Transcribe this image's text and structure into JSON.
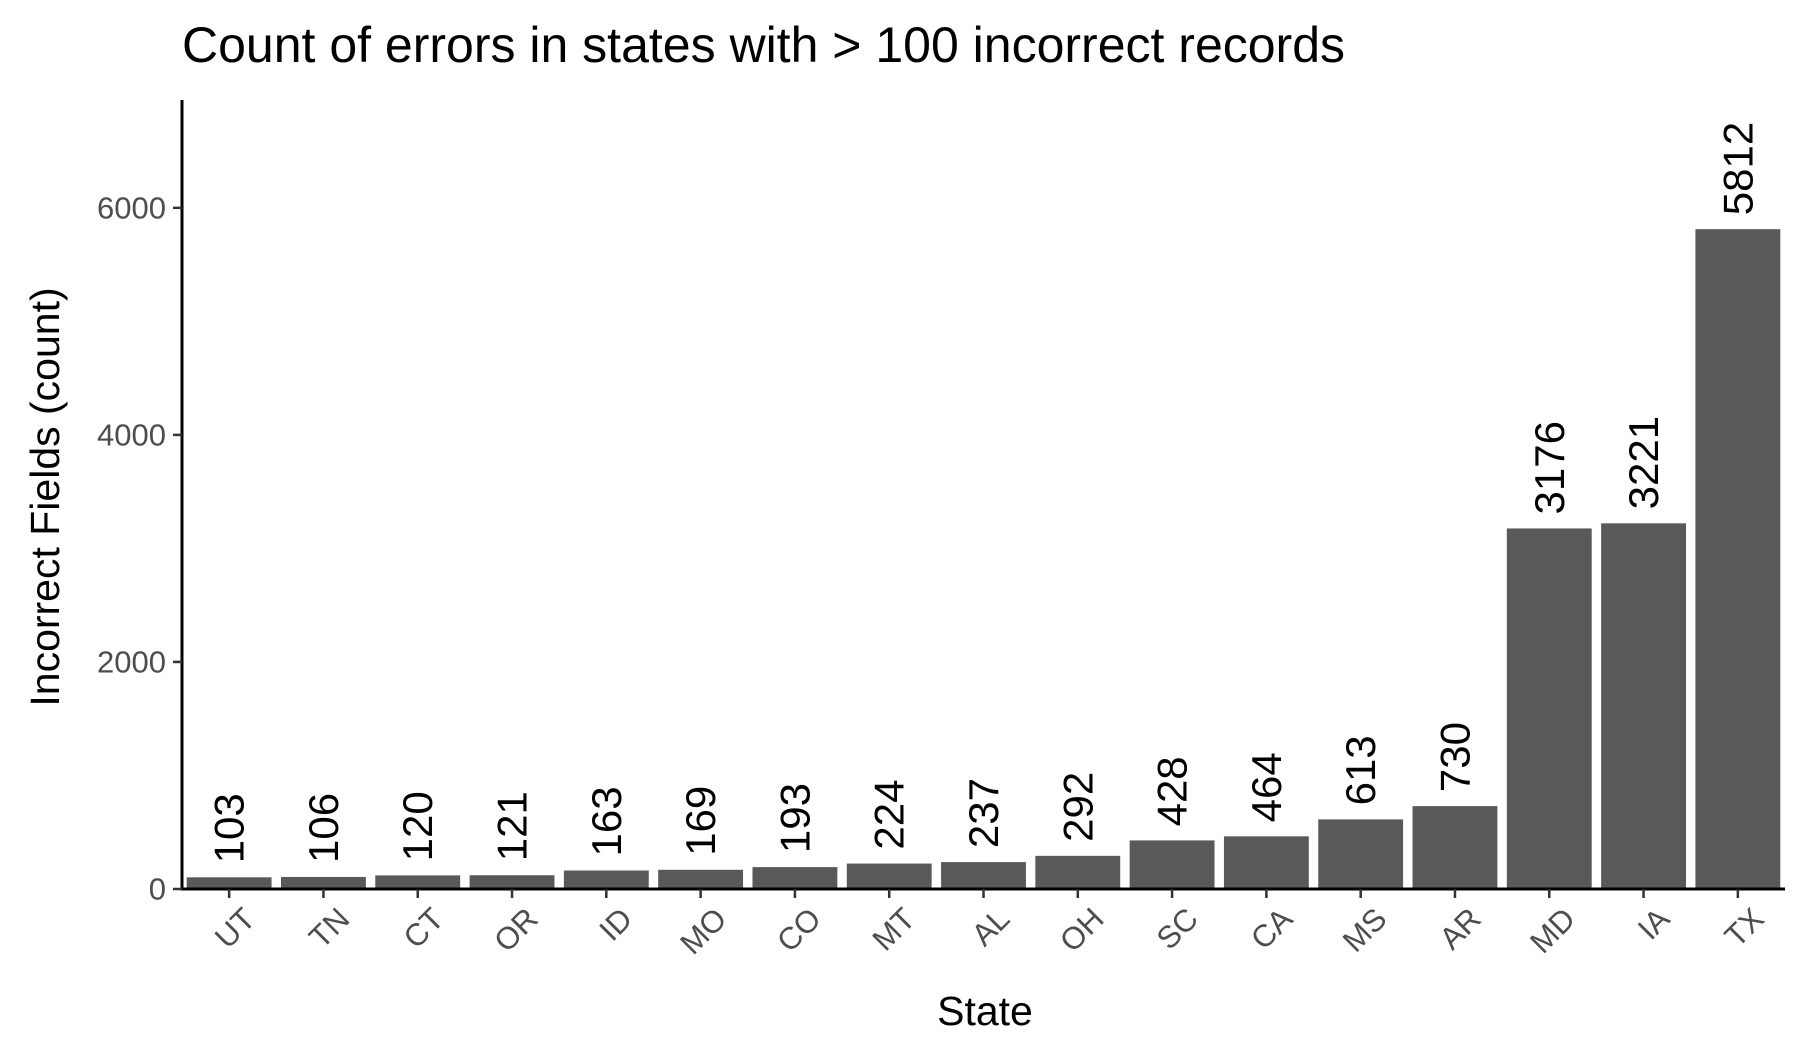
{
  "chart_data": {
    "type": "bar",
    "title": "Count of errors in states with > 100 incorrect records",
    "xlabel": "State",
    "ylabel": "Incorrect Fields (count)",
    "categories": [
      "UT",
      "TN",
      "CT",
      "OR",
      "ID",
      "MO",
      "CO",
      "MT",
      "AL",
      "OH",
      "SC",
      "CA",
      "MS",
      "AR",
      "MD",
      "IA",
      "TX"
    ],
    "values": [
      103,
      106,
      120,
      121,
      163,
      169,
      193,
      224,
      237,
      292,
      428,
      464,
      613,
      730,
      3176,
      3221,
      5812
    ],
    "data_labels": [
      "103",
      "106",
      "120",
      "121",
      "163",
      "169",
      "193",
      "224",
      "237",
      "292",
      "428",
      "464",
      "613",
      "730",
      "3176",
      "3221",
      "5812"
    ],
    "ylim": [
      0,
      6950
    ],
    "yticks": [
      0,
      2000,
      4000,
      6000
    ],
    "ytick_labels": [
      "0",
      "2000",
      "4000",
      "6000"
    ],
    "grid": false,
    "legend": "none",
    "bar_color": "#595959"
  }
}
